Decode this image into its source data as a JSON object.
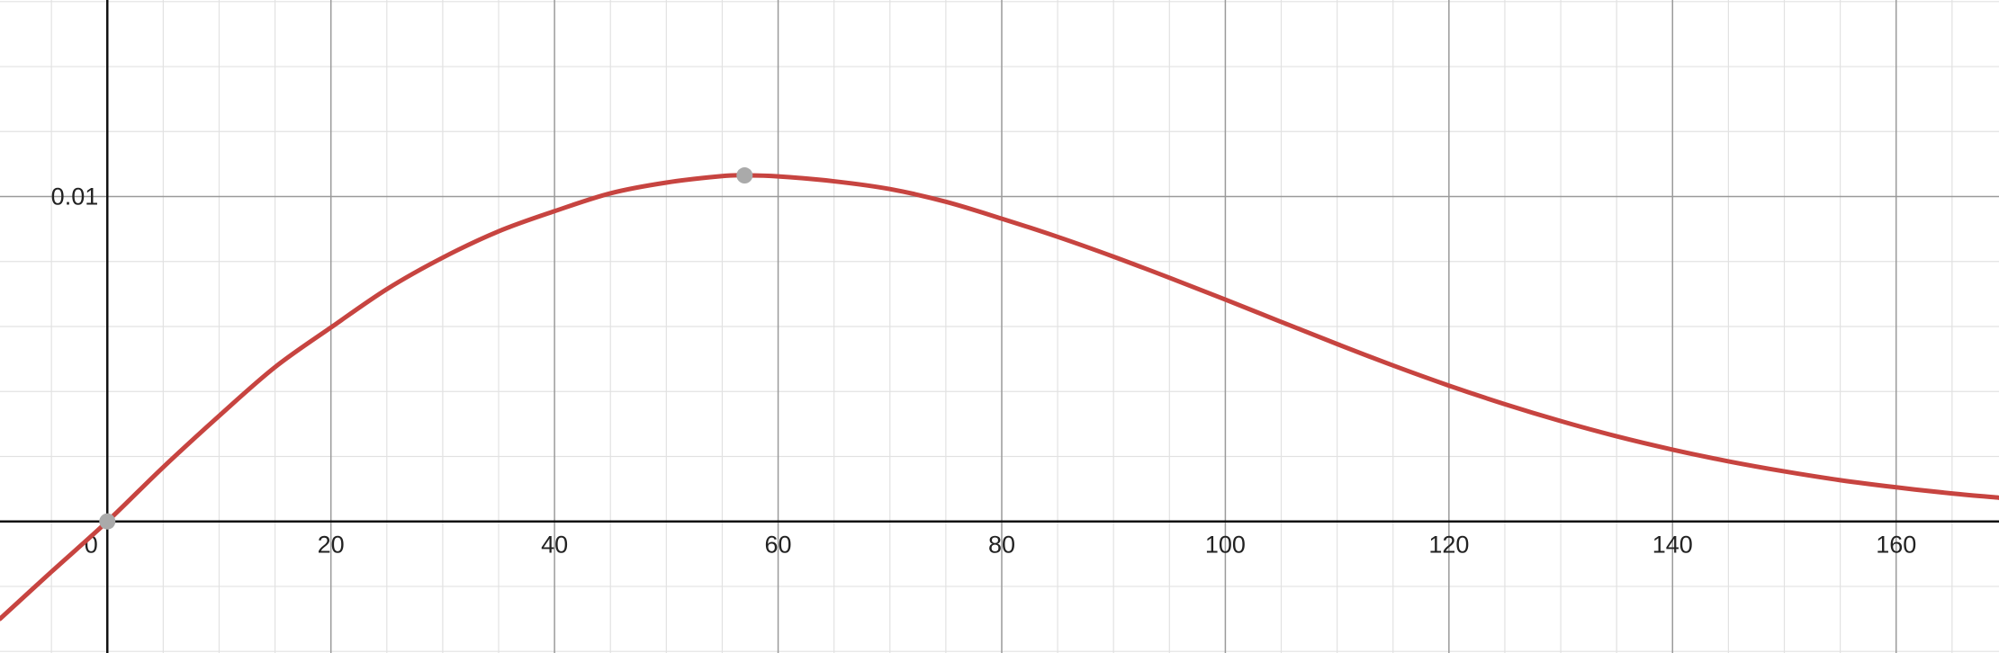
{
  "chart_data": {
    "type": "line",
    "title": "",
    "xlabel": "",
    "ylabel": "",
    "xlim": [
      -9.6,
      169.2
    ],
    "ylim": [
      -0.00405,
      0.01605
    ],
    "grid": true,
    "x_ticks": [
      {
        "value": 0,
        "label": "0"
      },
      {
        "value": 20,
        "label": "20"
      },
      {
        "value": 40,
        "label": "40"
      },
      {
        "value": 60,
        "label": "60"
      },
      {
        "value": 80,
        "label": "80"
      },
      {
        "value": 100,
        "label": "100"
      },
      {
        "value": 120,
        "label": "120"
      },
      {
        "value": 140,
        "label": "140"
      },
      {
        "value": 160,
        "label": "160"
      }
    ],
    "y_ticks": [
      {
        "value": 0.01,
        "label": "0.01"
      }
    ],
    "series": [
      {
        "color": "#c74440",
        "x": [
          -9.6,
          -5,
          0,
          5,
          10,
          15,
          20,
          25,
          30,
          35,
          40,
          45,
          50,
          55,
          57,
          60,
          65,
          70,
          75,
          80,
          85,
          90,
          95,
          100,
          105,
          110,
          115,
          120,
          125,
          130,
          135,
          140,
          145,
          150,
          155,
          160,
          165,
          169.2
        ],
        "y": [
          -0.003,
          -0.00155,
          0.0,
          0.00167,
          0.00325,
          0.00475,
          0.00597,
          0.00715,
          0.00812,
          0.00893,
          0.00955,
          0.0101,
          0.01043,
          0.01063,
          0.01065,
          0.01062,
          0.01047,
          0.01023,
          0.00984,
          0.00932,
          0.00876,
          0.00815,
          0.0075,
          0.00683,
          0.00614,
          0.00546,
          0.0048,
          0.00418,
          0.00361,
          0.00309,
          0.00262,
          0.00221,
          0.00185,
          0.00154,
          0.00127,
          0.00105,
          0.00086,
          0.00073
        ]
      }
    ],
    "points": [
      {
        "x": 0,
        "y": 0,
        "color": "#aaaaaa"
      },
      {
        "x": 57,
        "y": 0.01065,
        "color": "#aaaaaa"
      }
    ]
  }
}
